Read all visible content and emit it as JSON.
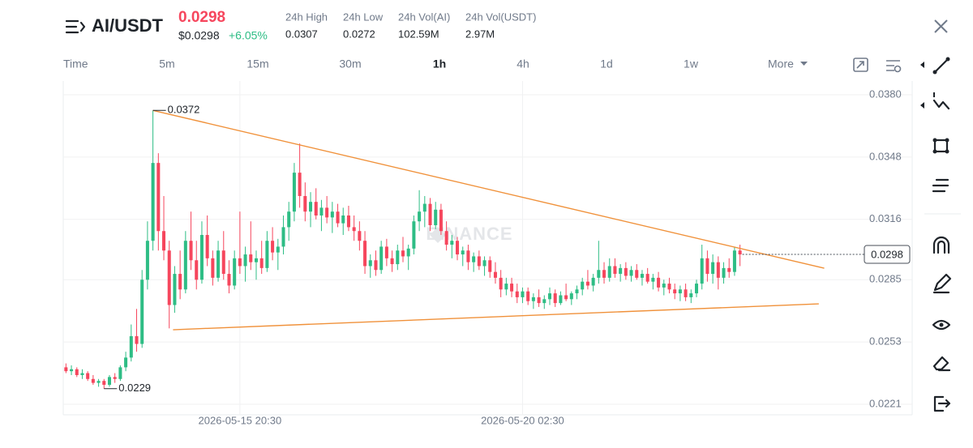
{
  "header": {
    "pair": "AI/USDT",
    "price": "0.0298",
    "price_usd": "$0.0298",
    "change": "+6.05%",
    "stats": [
      {
        "label": "24h High",
        "value": "0.0307"
      },
      {
        "label": "24h Low",
        "value": "0.0272"
      },
      {
        "label": "24h Vol(AI)",
        "value": "102.59M"
      },
      {
        "label": "24h Vol(USDT)",
        "value": "2.97M"
      }
    ]
  },
  "toolbar": {
    "intervals": [
      "Time",
      "5m",
      "15m",
      "30m",
      "1h",
      "4h",
      "1d",
      "1w"
    ],
    "active": "1h",
    "more": "More"
  },
  "chart_data": {
    "type": "candlestick",
    "watermark": "BINANCE",
    "up_color": "#2ebd85",
    "down_color": "#f6465d",
    "grid": true,
    "xlim": [
      -0.5,
      143
    ],
    "xticks": [
      {
        "value": 32,
        "label": "2026-05-15 20:30"
      },
      {
        "value": 84,
        "label": "2026-05-20 02:30"
      }
    ],
    "ylim": [
      0.02156,
      0.03871
    ],
    "yticks": [
      {
        "value": 0.038,
        "label": "0.0380"
      },
      0.0348,
      0.0316,
      0.0285,
      0.0253,
      0.0221
    ],
    "candles": [
      [
        0.024,
        0.0242,
        0.0237,
        0.0238
      ],
      [
        0.0238,
        0.0241,
        0.0236,
        0.0239
      ],
      [
        0.0239,
        0.024,
        0.0235,
        0.0236
      ],
      [
        0.0236,
        0.0239,
        0.0234,
        0.0237
      ],
      [
        0.0237,
        0.0238,
        0.0233,
        0.0234
      ],
      [
        0.0234,
        0.0236,
        0.0231,
        0.0232
      ],
      [
        0.0232,
        0.0234,
        0.023,
        0.0233
      ],
      [
        0.0233,
        0.0234,
        0.0229,
        0.0231
      ],
      [
        0.0231,
        0.0236,
        0.023,
        0.0235
      ],
      [
        0.0235,
        0.0237,
        0.0232,
        0.0234
      ],
      [
        0.0234,
        0.0241,
        0.0233,
        0.024
      ],
      [
        0.024,
        0.0248,
        0.0238,
        0.0245
      ],
      [
        0.0245,
        0.0262,
        0.0243,
        0.0256
      ],
      [
        0.0256,
        0.027,
        0.0248,
        0.0252
      ],
      [
        0.0252,
        0.029,
        0.025,
        0.0285
      ],
      [
        0.0285,
        0.0315,
        0.028,
        0.0305
      ],
      [
        0.0305,
        0.0372,
        0.03,
        0.0345
      ],
      [
        0.0345,
        0.035,
        0.03,
        0.031
      ],
      [
        0.031,
        0.0328,
        0.0295,
        0.03
      ],
      [
        0.03,
        0.0305,
        0.026,
        0.0272
      ],
      [
        0.0272,
        0.0292,
        0.0268,
        0.0288
      ],
      [
        0.0288,
        0.03,
        0.0275,
        0.028
      ],
      [
        0.028,
        0.031,
        0.0278,
        0.0305
      ],
      [
        0.0305,
        0.032,
        0.029,
        0.0295
      ],
      [
        0.0295,
        0.0305,
        0.028,
        0.0285
      ],
      [
        0.0285,
        0.0315,
        0.0283,
        0.0308
      ],
      [
        0.0308,
        0.0318,
        0.0292,
        0.0296
      ],
      [
        0.0296,
        0.03,
        0.0282,
        0.0286
      ],
      [
        0.0286,
        0.0305,
        0.0284,
        0.03
      ],
      [
        0.03,
        0.031,
        0.0285,
        0.0288
      ],
      [
        0.0288,
        0.0295,
        0.0278,
        0.0282
      ],
      [
        0.0282,
        0.03,
        0.028,
        0.0296
      ],
      [
        0.0296,
        0.032,
        0.0288,
        0.0292
      ],
      [
        0.0292,
        0.0302,
        0.0284,
        0.0298
      ],
      [
        0.0298,
        0.0315,
        0.029,
        0.0294
      ],
      [
        0.0294,
        0.03,
        0.0285,
        0.0296
      ],
      [
        0.0296,
        0.0305,
        0.0288,
        0.0291
      ],
      [
        0.0291,
        0.031,
        0.0289,
        0.0305
      ],
      [
        0.0305,
        0.0312,
        0.0295,
        0.0299
      ],
      [
        0.0299,
        0.0306,
        0.029,
        0.0302
      ],
      [
        0.0302,
        0.0318,
        0.0298,
        0.0312
      ],
      [
        0.0312,
        0.0325,
        0.0305,
        0.032
      ],
      [
        0.032,
        0.0345,
        0.0315,
        0.034
      ],
      [
        0.034,
        0.0355,
        0.0322,
        0.0328
      ],
      [
        0.0328,
        0.0335,
        0.0315,
        0.032
      ],
      [
        0.032,
        0.033,
        0.0312,
        0.0325
      ],
      [
        0.0325,
        0.0332,
        0.0316,
        0.0318
      ],
      [
        0.0318,
        0.0326,
        0.031,
        0.0322
      ],
      [
        0.0322,
        0.0328,
        0.0314,
        0.0317
      ],
      [
        0.0317,
        0.0325,
        0.0309,
        0.032
      ],
      [
        0.032,
        0.0324,
        0.0312,
        0.0314
      ],
      [
        0.0314,
        0.0322,
        0.0308,
        0.0318
      ],
      [
        0.0318,
        0.0323,
        0.031,
        0.0312
      ],
      [
        0.0312,
        0.0318,
        0.0305,
        0.031
      ],
      [
        0.031,
        0.0315,
        0.03,
        0.0305
      ],
      [
        0.0305,
        0.031,
        0.0288,
        0.0292
      ],
      [
        0.0292,
        0.0298,
        0.0286,
        0.0295
      ],
      [
        0.0295,
        0.03,
        0.0287,
        0.029
      ],
      [
        0.029,
        0.0305,
        0.0288,
        0.0302
      ],
      [
        0.0302,
        0.0306,
        0.0292,
        0.0296
      ],
      [
        0.0296,
        0.03,
        0.0289,
        0.0293
      ],
      [
        0.0293,
        0.0303,
        0.029,
        0.03
      ],
      [
        0.03,
        0.0307,
        0.0294,
        0.0297
      ],
      [
        0.0297,
        0.0303,
        0.029,
        0.0301
      ],
      [
        0.0301,
        0.0318,
        0.0298,
        0.0315
      ],
      [
        0.0315,
        0.0331,
        0.031,
        0.032
      ],
      [
        0.032,
        0.0328,
        0.0312,
        0.0324
      ],
      [
        0.0324,
        0.0327,
        0.031,
        0.0313
      ],
      [
        0.0313,
        0.0325,
        0.0311,
        0.0321
      ],
      [
        0.0321,
        0.0324,
        0.0308,
        0.031
      ],
      [
        0.031,
        0.0315,
        0.03,
        0.0303
      ],
      [
        0.0303,
        0.0308,
        0.0296,
        0.0305
      ],
      [
        0.0305,
        0.0307,
        0.0295,
        0.0298
      ],
      [
        0.0298,
        0.0302,
        0.0292,
        0.03
      ],
      [
        0.03,
        0.0303,
        0.029,
        0.0294
      ],
      [
        0.0294,
        0.0299,
        0.0289,
        0.0297
      ],
      [
        0.0297,
        0.03,
        0.029,
        0.0292
      ],
      [
        0.0292,
        0.0297,
        0.0287,
        0.0295
      ],
      [
        0.0295,
        0.0297,
        0.0286,
        0.0289
      ],
      [
        0.0289,
        0.0294,
        0.0283,
        0.0286
      ],
      [
        0.0286,
        0.029,
        0.0276,
        0.028
      ],
      [
        0.028,
        0.0286,
        0.0277,
        0.0283
      ],
      [
        0.0283,
        0.0286,
        0.0276,
        0.0279
      ],
      [
        0.0279,
        0.0283,
        0.0273,
        0.0276
      ],
      [
        0.0276,
        0.0281,
        0.0273,
        0.0279
      ],
      [
        0.0279,
        0.0281,
        0.0272,
        0.0274
      ],
      [
        0.0274,
        0.0278,
        0.027,
        0.0276
      ],
      [
        0.0276,
        0.028,
        0.0271,
        0.0273
      ],
      [
        0.0273,
        0.0277,
        0.027,
        0.0275
      ],
      [
        0.0275,
        0.0281,
        0.0272,
        0.0278
      ],
      [
        0.0278,
        0.028,
        0.0271,
        0.0273
      ],
      [
        0.0273,
        0.0279,
        0.0272,
        0.0277
      ],
      [
        0.0277,
        0.0283,
        0.0274,
        0.0275
      ],
      [
        0.0275,
        0.0279,
        0.0272,
        0.0278
      ],
      [
        0.0278,
        0.0282,
        0.0275,
        0.028
      ],
      [
        0.028,
        0.0286,
        0.0277,
        0.0284
      ],
      [
        0.0284,
        0.029,
        0.028,
        0.0282
      ],
      [
        0.0282,
        0.0288,
        0.0279,
        0.0286
      ],
      [
        0.0286,
        0.0305,
        0.0283,
        0.029
      ],
      [
        0.029,
        0.0294,
        0.0283,
        0.0286
      ],
      [
        0.0286,
        0.0296,
        0.0284,
        0.0292
      ],
      [
        0.0292,
        0.0296,
        0.0286,
        0.0288
      ],
      [
        0.0288,
        0.0293,
        0.0284,
        0.0291
      ],
      [
        0.0291,
        0.0294,
        0.0285,
        0.0287
      ],
      [
        0.0287,
        0.0292,
        0.0284,
        0.029
      ],
      [
        0.029,
        0.0293,
        0.0285,
        0.0286
      ],
      [
        0.0286,
        0.029,
        0.0282,
        0.0288
      ],
      [
        0.0288,
        0.0291,
        0.0283,
        0.0284
      ],
      [
        0.0284,
        0.0288,
        0.028,
        0.0286
      ],
      [
        0.0286,
        0.0289,
        0.0279,
        0.0281
      ],
      [
        0.0281,
        0.0285,
        0.0277,
        0.0283
      ],
      [
        0.0283,
        0.0286,
        0.0278,
        0.028
      ],
      [
        0.028,
        0.0283,
        0.0275,
        0.0278
      ],
      [
        0.0278,
        0.0282,
        0.0274,
        0.028
      ],
      [
        0.028,
        0.0283,
        0.0274,
        0.0276
      ],
      [
        0.0276,
        0.028,
        0.0273,
        0.0278
      ],
      [
        0.0278,
        0.0285,
        0.0276,
        0.0283
      ],
      [
        0.0283,
        0.0303,
        0.028,
        0.0296
      ],
      [
        0.0296,
        0.03,
        0.0284,
        0.0288
      ],
      [
        0.0288,
        0.0298,
        0.0283,
        0.0294
      ],
      [
        0.0294,
        0.0297,
        0.028,
        0.0286
      ],
      [
        0.0286,
        0.0294,
        0.0283,
        0.0291
      ],
      [
        0.0291,
        0.0296,
        0.0286,
        0.0289
      ],
      [
        0.0289,
        0.0302,
        0.0287,
        0.03
      ],
      [
        0.03,
        0.0303,
        0.0292,
        0.0298
      ]
    ],
    "trendline_color": "#f0913a",
    "trendlines": [
      {
        "x": [
          16,
          139.5
        ],
        "y": [
          0.0372,
          0.02909
        ]
      },
      {
        "x": [
          19.7,
          138.5
        ],
        "y": [
          0.02593,
          0.02726
        ]
      }
    ],
    "annotations": [
      {
        "x": 16,
        "value": 0.0372,
        "label": "0.0372"
      },
      {
        "x": 7,
        "value": 0.0229,
        "label": "0.0229"
      }
    ],
    "price_line": {
      "x": 124,
      "value": 0.0298,
      "label": "0.0298"
    }
  }
}
